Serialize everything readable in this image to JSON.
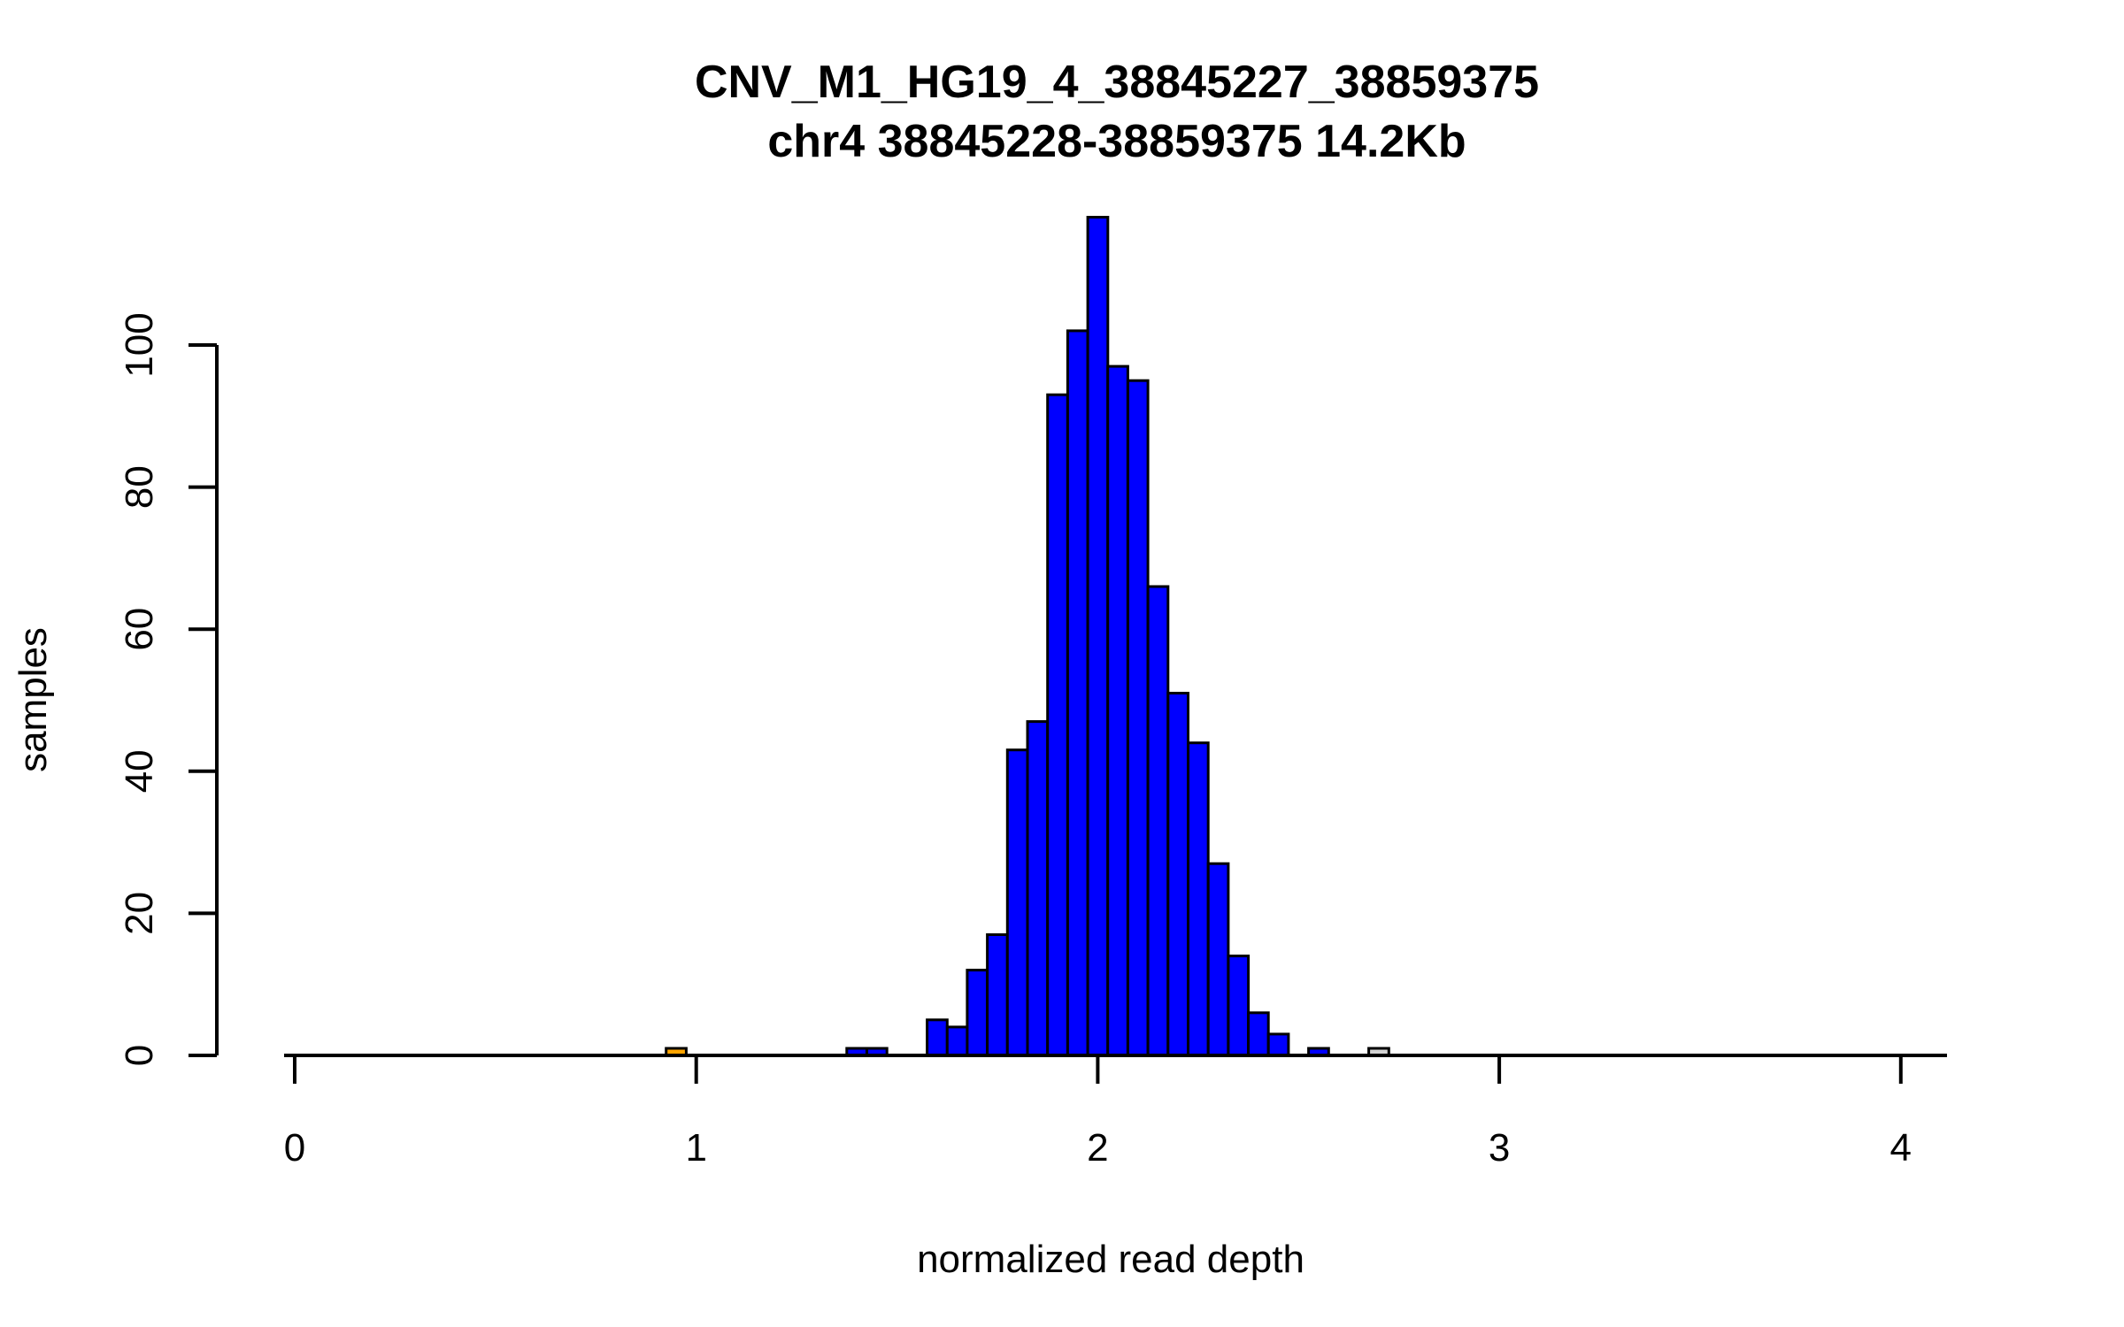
{
  "chart_data": {
    "type": "bar",
    "title": "CNV_M1_HG19_4_38845227_38859375",
    "subtitle": "chr4 38845228-38859375 14.2Kb",
    "xlabel": "normalized read depth",
    "ylabel": "samples",
    "x_ticks": [
      0,
      1,
      2,
      3,
      4
    ],
    "y_ticks": [
      0,
      20,
      40,
      60,
      80,
      100
    ],
    "xlim": [
      -0.03,
      4.12
    ],
    "ylim": [
      0,
      118
    ],
    "grid": "off",
    "legend": "none",
    "bin_width": 0.05,
    "bars": [
      {
        "center": 0.95,
        "count": 1,
        "color": "orange"
      },
      {
        "center": 1.4,
        "count": 1,
        "color": "blue"
      },
      {
        "center": 1.45,
        "count": 1,
        "color": "blue"
      },
      {
        "center": 1.6,
        "count": 5,
        "color": "blue"
      },
      {
        "center": 1.65,
        "count": 4,
        "color": "blue"
      },
      {
        "center": 1.7,
        "count": 12,
        "color": "blue"
      },
      {
        "center": 1.75,
        "count": 17,
        "color": "blue"
      },
      {
        "center": 1.8,
        "count": 43,
        "color": "blue"
      },
      {
        "center": 1.85,
        "count": 47,
        "color": "blue"
      },
      {
        "center": 1.9,
        "count": 93,
        "color": "blue"
      },
      {
        "center": 1.95,
        "count": 102,
        "color": "blue"
      },
      {
        "center": 2.0,
        "count": 118,
        "color": "blue"
      },
      {
        "center": 2.05,
        "count": 97,
        "color": "blue"
      },
      {
        "center": 2.1,
        "count": 95,
        "color": "blue"
      },
      {
        "center": 2.15,
        "count": 66,
        "color": "blue"
      },
      {
        "center": 2.2,
        "count": 51,
        "color": "blue"
      },
      {
        "center": 2.25,
        "count": 44,
        "color": "blue"
      },
      {
        "center": 2.3,
        "count": 27,
        "color": "blue"
      },
      {
        "center": 2.35,
        "count": 14,
        "color": "blue"
      },
      {
        "center": 2.4,
        "count": 6,
        "color": "blue"
      },
      {
        "center": 2.45,
        "count": 3,
        "color": "blue"
      },
      {
        "center": 2.55,
        "count": 1,
        "color": "blue"
      },
      {
        "center": 2.7,
        "count": 1,
        "color": "gray"
      }
    ],
    "colors": {
      "blue": "#0000FF",
      "orange": "#FFA500",
      "gray": "#D3D3D3",
      "axis": "#000000"
    }
  }
}
